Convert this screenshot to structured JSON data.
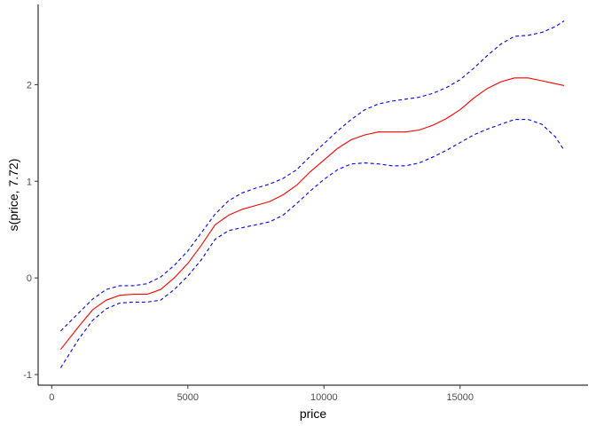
{
  "chart_data": {
    "type": "line",
    "title": "",
    "xlabel": "price",
    "ylabel": "s(price, 7.72)",
    "xlim": [
      -500,
      19700
    ],
    "ylim": [
      -1.11,
      2.83
    ],
    "xticks": [
      0,
      5000,
      10000,
      15000
    ],
    "xtick_labels": [
      "0",
      "5000",
      "10000",
      "15000"
    ],
    "yticks": [
      -1,
      0,
      1,
      2
    ],
    "ytick_labels": [
      "-1",
      "0",
      "1",
      "2"
    ],
    "grid": false,
    "legend": "none",
    "x": [
      326,
      1000,
      1500,
      2000,
      2500,
      3000,
      3500,
      4000,
      4500,
      5000,
      5500,
      6000,
      6500,
      7000,
      7500,
      8000,
      8500,
      9000,
      9500,
      10000,
      10500,
      11000,
      11500,
      12000,
      12500,
      13000,
      13500,
      14000,
      14500,
      15000,
      15500,
      16000,
      16500,
      17000,
      17500,
      18000,
      18500,
      18823
    ],
    "series": [
      {
        "role": "fit",
        "color": "#ff0000",
        "dashed": false,
        "values": [
          -0.74,
          -0.5,
          -0.33,
          -0.23,
          -0.18,
          -0.17,
          -0.17,
          -0.12,
          0.0,
          0.15,
          0.34,
          0.55,
          0.65,
          0.71,
          0.75,
          0.79,
          0.86,
          0.96,
          1.1,
          1.22,
          1.34,
          1.43,
          1.48,
          1.51,
          1.51,
          1.51,
          1.53,
          1.58,
          1.65,
          1.74,
          1.86,
          1.96,
          2.03,
          2.07,
          2.07,
          2.04,
          2.01,
          1.99
        ]
      },
      {
        "role": "upper",
        "color": "#0000ff",
        "dashed": true,
        "values": [
          -0.55,
          -0.36,
          -0.22,
          -0.12,
          -0.08,
          -0.08,
          -0.06,
          0.01,
          0.13,
          0.28,
          0.47,
          0.66,
          0.8,
          0.88,
          0.93,
          0.97,
          1.03,
          1.12,
          1.26,
          1.39,
          1.52,
          1.64,
          1.74,
          1.8,
          1.83,
          1.85,
          1.87,
          1.91,
          1.97,
          2.05,
          2.17,
          2.3,
          2.42,
          2.5,
          2.51,
          2.54,
          2.6,
          2.66
        ]
      },
      {
        "role": "lower",
        "color": "#0000ff",
        "dashed": true,
        "values": [
          -0.93,
          -0.63,
          -0.44,
          -0.32,
          -0.26,
          -0.25,
          -0.25,
          -0.23,
          -0.12,
          0.02,
          0.19,
          0.4,
          0.49,
          0.52,
          0.55,
          0.58,
          0.65,
          0.77,
          0.9,
          1.02,
          1.12,
          1.18,
          1.19,
          1.18,
          1.16,
          1.16,
          1.19,
          1.25,
          1.32,
          1.4,
          1.48,
          1.54,
          1.59,
          1.64,
          1.64,
          1.59,
          1.46,
          1.32
        ]
      }
    ]
  }
}
